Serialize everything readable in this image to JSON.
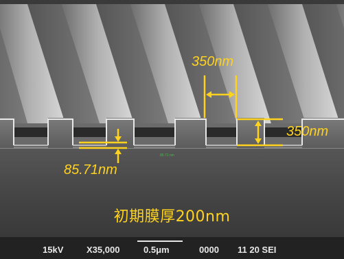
{
  "image": {
    "description_tags": [
      "sem-micrograph",
      "grating-cross-section"
    ],
    "colors": {
      "annotation": "#ffd21e",
      "info_text": "#e8e8e8",
      "marker": "#3fbf3f"
    }
  },
  "annotations": {
    "pitch_width": "350nm",
    "line_height": "350nm",
    "residual_thickness": "85.71nm",
    "small_marker": "85.71 nm"
  },
  "caption": "初期膜厚200nm",
  "info_bar": {
    "voltage": "15kV",
    "magnification": "X35,000",
    "scale": "0.5μm",
    "code": "0000",
    "numbers": "11 20 SEI"
  }
}
